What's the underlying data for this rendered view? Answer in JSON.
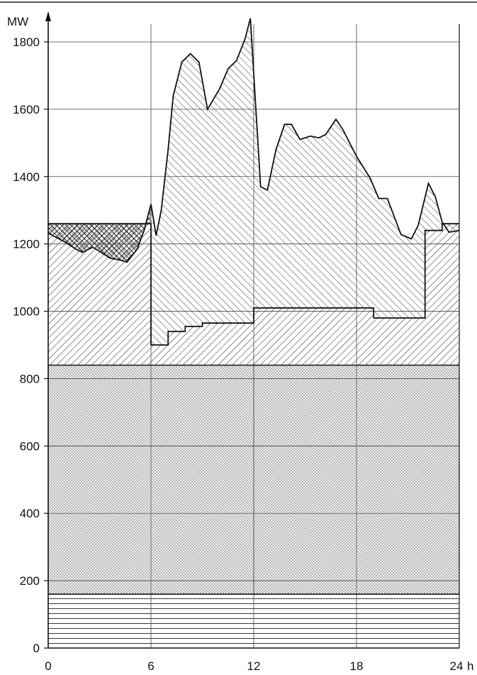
{
  "chart_data": {
    "type": "area",
    "title": "",
    "xlabel": "",
    "ylabel": "MW",
    "x_unit": "h",
    "xlim": [
      0,
      24
    ],
    "ylim": [
      0,
      1800
    ],
    "x_ticks": [
      0,
      6,
      12,
      18,
      24
    ],
    "x_tick_labels": [
      "0",
      "6",
      "12",
      "18",
      "24"
    ],
    "y_ticks": [
      0,
      200,
      400,
      600,
      800,
      1000,
      1200,
      1400,
      1600,
      1800
    ],
    "y_tick_labels": [
      "0",
      "200",
      "400",
      "600",
      "800",
      "1000",
      "1200",
      "1400",
      "1600",
      "1800"
    ],
    "grid": true,
    "legend": "none",
    "series": [
      {
        "values": [
          [
            0,
            160
          ],
          [
            24,
            160
          ]
        ]
      },
      {
        "values": [
          [
            0,
            840
          ],
          [
            24,
            840
          ]
        ]
      },
      {
        "values": [
          [
            0,
            1260
          ],
          [
            6,
            1260
          ],
          [
            6,
            900
          ],
          [
            7,
            900
          ],
          [
            7,
            940
          ],
          [
            8,
            940
          ],
          [
            8,
            955
          ],
          [
            9,
            955
          ],
          [
            9,
            965
          ],
          [
            12,
            965
          ],
          [
            12,
            1010
          ],
          [
            19,
            1010
          ],
          [
            19,
            980
          ],
          [
            22,
            980
          ],
          [
            22,
            1240
          ],
          [
            23,
            1240
          ],
          [
            23,
            1260
          ],
          [
            24,
            1260
          ]
        ]
      },
      {
        "values": [
          [
            0,
            1232
          ],
          [
            1,
            1205
          ],
          [
            1.6,
            1185
          ],
          [
            2,
            1175
          ],
          [
            2.6,
            1190
          ],
          [
            3.0,
            1178
          ],
          [
            3.6,
            1158
          ],
          [
            4.2,
            1152
          ],
          [
            4.6,
            1146
          ],
          [
            5.2,
            1185
          ],
          [
            5.6,
            1240
          ],
          [
            6.0,
            1318
          ],
          [
            6.3,
            1225
          ],
          [
            6.6,
            1300
          ],
          [
            7.0,
            1480
          ],
          [
            7.3,
            1640
          ],
          [
            7.8,
            1740
          ],
          [
            8.3,
            1765
          ],
          [
            8.8,
            1740
          ],
          [
            9.3,
            1600
          ],
          [
            10.0,
            1660
          ],
          [
            10.5,
            1720
          ],
          [
            11.0,
            1745
          ],
          [
            11.5,
            1810
          ],
          [
            11.8,
            1870
          ],
          [
            12.4,
            1370
          ],
          [
            12.8,
            1360
          ],
          [
            13.3,
            1480
          ],
          [
            13.8,
            1555
          ],
          [
            14.2,
            1555
          ],
          [
            14.7,
            1510
          ],
          [
            15.3,
            1520
          ],
          [
            15.8,
            1515
          ],
          [
            16.2,
            1525
          ],
          [
            16.8,
            1570
          ],
          [
            17.2,
            1540
          ],
          [
            18.0,
            1460
          ],
          [
            18.8,
            1395
          ],
          [
            19.3,
            1335
          ],
          [
            19.8,
            1335
          ],
          [
            20.6,
            1228
          ],
          [
            21.2,
            1215
          ],
          [
            21.6,
            1255
          ],
          [
            22.2,
            1380
          ],
          [
            22.6,
            1340
          ],
          [
            23.0,
            1265
          ],
          [
            23.4,
            1235
          ],
          [
            24,
            1240
          ]
        ]
      }
    ]
  }
}
